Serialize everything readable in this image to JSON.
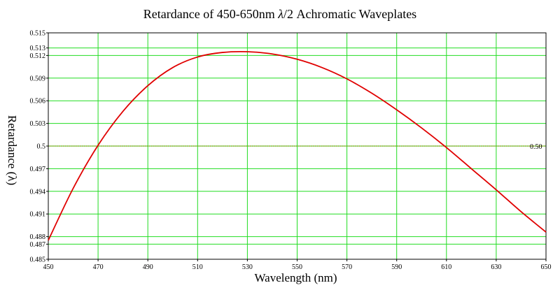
{
  "title_prefix": "Retardance of 450-650nm ",
  "title_lambda": "λ",
  "title_suffix": "/2 Achromatic Waveplates",
  "colors": {
    "curve": "#e00000",
    "grid": "#22dd22",
    "reference": "#a08000",
    "axis": "#000000"
  },
  "chart_data": {
    "type": "line",
    "title": "Retardance of 450-650nm λ/2 Achromatic Waveplates",
    "xlabel": "Wavelength (nm)",
    "ylabel": "Retardance (λ)",
    "xlim": [
      450,
      650
    ],
    "ylim": [
      0.485,
      0.515
    ],
    "grid": true,
    "x_ticks": [
      "450",
      "470",
      "490",
      "510",
      "530",
      "550",
      "570",
      "590",
      "610",
      "630",
      "650"
    ],
    "y_ticks": [
      "0.485",
      "0.487",
      "0.488",
      "0.491",
      "0.494",
      "0.497",
      "0.5",
      "0.503",
      "0.506",
      "0.509",
      "0.512",
      "0.513",
      "0.515"
    ],
    "reference_line": {
      "y": 0.5,
      "label": "0.50"
    },
    "series": [
      {
        "x": [
          450,
          460,
          470,
          480,
          490,
          500,
          510,
          520,
          530,
          540,
          550,
          560,
          570,
          580,
          590,
          600,
          610,
          620,
          630,
          640,
          650
        ],
        "y": [
          0.4875,
          0.4944,
          0.5001,
          0.5046,
          0.508,
          0.5104,
          0.5118,
          0.5124,
          0.5125,
          0.5122,
          0.5115,
          0.5104,
          0.5089,
          0.507,
          0.5048,
          0.5024,
          0.4998,
          0.497,
          0.4942,
          0.4913,
          0.4886
        ]
      }
    ]
  }
}
